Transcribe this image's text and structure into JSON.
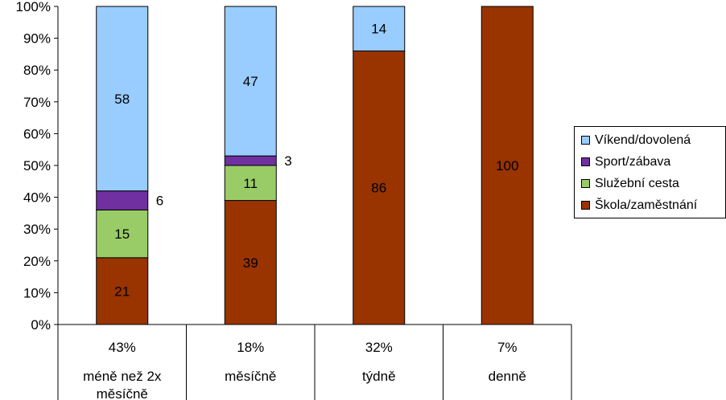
{
  "chart_data": {
    "type": "bar",
    "stacked": true,
    "percent": true,
    "categories": [
      "méně než 2x měsíčně",
      "měsíčně",
      "týdně",
      "denně"
    ],
    "category_shares": [
      "43%",
      "18%",
      "32%",
      "7%"
    ],
    "series": [
      {
        "name": "Škola/zaměstnání",
        "color": "#993300",
        "values": [
          21,
          39,
          86,
          100
        ]
      },
      {
        "name": "Služební cesta",
        "color": "#99CC66",
        "values": [
          15,
          11,
          0,
          0
        ]
      },
      {
        "name": "Sport/zábava",
        "color": "#7030A0",
        "values": [
          6,
          3,
          0,
          0
        ]
      },
      {
        "name": "Víkend/dovolená",
        "color": "#99CCFF",
        "values": [
          58,
          47,
          14,
          0
        ]
      }
    ],
    "data_label_position": [
      "inside",
      "inside",
      "outside",
      "inside"
    ],
    "ylim": [
      0,
      100
    ],
    "yticks": [
      "0%",
      "10%",
      "20%",
      "30%",
      "40%",
      "50%",
      "60%",
      "70%",
      "80%",
      "90%",
      "100%"
    ],
    "legend_position": "right",
    "grid": false
  }
}
